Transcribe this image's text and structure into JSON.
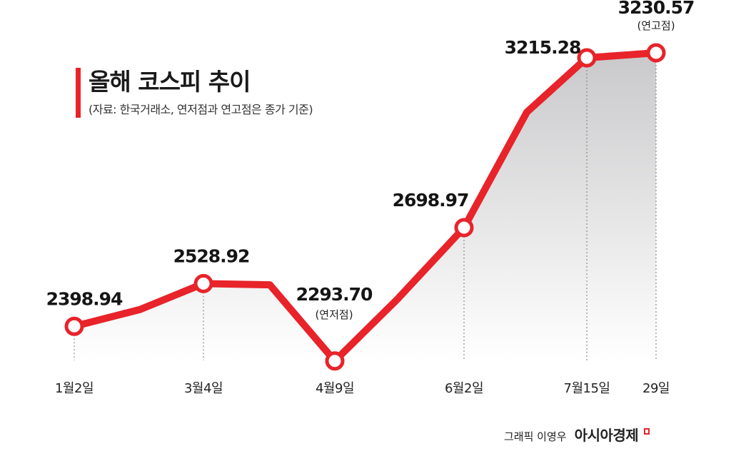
{
  "header": {
    "title": "올해 코스피 추이",
    "subtitle": "(자료: 한국거래소, 연저점과 연고점은 종가 기준)"
  },
  "credit": {
    "graphic": "그래픽 이영우",
    "brand": "아시아경제"
  },
  "colors": {
    "accent": "#e8232a",
    "area_top": "#c9c9cb",
    "area_bottom": "#ffffff",
    "guide": "#777777"
  },
  "chart_data": {
    "type": "line",
    "title": "올해 코스피 추이",
    "ylim": [
      2150,
      3300
    ],
    "grid": false,
    "legend": "none",
    "x": [
      "1월2일",
      "",
      "3월4일",
      "",
      "4월9일",
      "",
      "6월2일",
      "",
      "7월15일",
      "29일"
    ],
    "values": [
      2398.94,
      2450,
      2528.92,
      2525,
      2293.7,
      2480,
      2698.97,
      3050,
      3215.28,
      3230.57
    ],
    "tick_labels": [
      "1월2일",
      "3월4일",
      "4월9일",
      "6월2일",
      "7월15일",
      "29일"
    ],
    "labeled_points": [
      {
        "x": "1월2일",
        "value": "2398.94",
        "note": ""
      },
      {
        "x": "3월4일",
        "value": "2528.92",
        "note": ""
      },
      {
        "x": "4월9일",
        "value": "2293.70",
        "note": "(연저점)"
      },
      {
        "x": "6월2일",
        "value": "2698.97",
        "note": ""
      },
      {
        "x": "7월15일",
        "value": "3215.28",
        "note": ""
      },
      {
        "x": "29일",
        "value": "3230.57",
        "note": "(연고점)"
      }
    ]
  }
}
